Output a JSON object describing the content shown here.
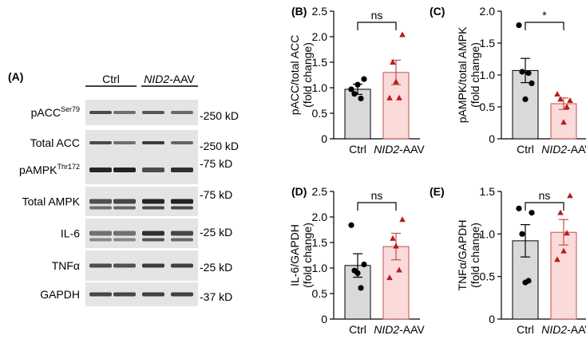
{
  "panel_a": {
    "label": "(A)",
    "group_labels": [
      {
        "text": "Ctrl",
        "italic": false
      },
      {
        "text": "NID2",
        "italic": true,
        "suffix": "-AAV"
      }
    ],
    "blots": [
      {
        "label": "pACC",
        "sup": "Ser79",
        "marker": "-250 kD"
      },
      {
        "label": "Total ACC",
        "sup": "",
        "marker": "-250 kD"
      },
      {
        "label": "pAMPK",
        "sup": "Thr172",
        "marker": "-75 kD"
      },
      {
        "label": "Total AMPK",
        "sup": "",
        "marker": "-75 kD"
      },
      {
        "label": "IL-6",
        "sup": "",
        "marker": "-25 kD"
      },
      {
        "label": "TNFα",
        "sup": "",
        "marker": "-25 kD"
      },
      {
        "label": "GAPDH",
        "sup": "",
        "marker": "-37 kD"
      }
    ]
  },
  "chart_data": [
    {
      "panel": "(B)",
      "type": "bar",
      "ylabel": "pACC/total ACC",
      "ylabel2": "(fold change)",
      "ylim": [
        0,
        2.5
      ],
      "yticks": [
        "0",
        "0.5",
        "1.0",
        "1.5",
        "2.0",
        "2.5"
      ],
      "categories": [
        {
          "text": "Ctrl",
          "italic": false
        },
        {
          "text": "NID2",
          "italic": true,
          "suffix": "-AAV"
        }
      ],
      "means": [
        0.97,
        1.3
      ],
      "sem": [
        0.1,
        0.24
      ],
      "points": [
        [
          0.97,
          1.17,
          0.88,
          0.79,
          1.06
        ],
        [
          0.8,
          2.04,
          1.5,
          0.8,
          1.12
        ]
      ],
      "significance": "ns",
      "colors": {
        "bar1": "#d9d9d9",
        "bar2": "#fbdada",
        "edge2": "#c0504d",
        "pt2": "#b71c1c"
      }
    },
    {
      "panel": "(C)",
      "type": "bar",
      "ylabel": "pAMPK/total AMPK",
      "ylabel2": "(fold change)",
      "ylim": [
        0,
        2.0
      ],
      "yticks": [
        "0",
        "0.5",
        "1.0",
        "1.5",
        "2.0"
      ],
      "categories": [
        {
          "text": "Ctrl",
          "italic": false
        },
        {
          "text": "NID2",
          "italic": true,
          "suffix": "-AAV"
        }
      ],
      "means": [
        1.07,
        0.55
      ],
      "sem": [
        0.19,
        0.09
      ],
      "points": [
        [
          1.78,
          0.87,
          1.05,
          1.03,
          0.62
        ],
        [
          0.7,
          0.6,
          0.62,
          0.5,
          0.26
        ]
      ],
      "significance": "*",
      "colors": {
        "bar1": "#d9d9d9",
        "bar2": "#fbdada",
        "edge2": "#c0504d",
        "pt2": "#b71c1c"
      }
    },
    {
      "panel": "(D)",
      "type": "bar",
      "ylabel": "IL-6/GAPDH",
      "ylabel2": "(fold change)",
      "ylim": [
        0,
        2.5
      ],
      "yticks": [
        "0",
        "0.5",
        "1.0",
        "1.5",
        "2.0",
        "2.5"
      ],
      "categories": [
        {
          "text": "Ctrl",
          "italic": false
        },
        {
          "text": "NID2",
          "italic": true,
          "suffix": "-AAV"
        }
      ],
      "means": [
        1.05,
        1.42
      ],
      "sem": [
        0.23,
        0.26
      ],
      "points": [
        [
          1.84,
          1.07,
          0.95,
          0.61,
          0.9
        ],
        [
          0.81,
          1.95,
          1.58,
          0.96,
          1.43
        ]
      ],
      "significance": "ns",
      "colors": {
        "bar1": "#d9d9d9",
        "bar2": "#fbdada",
        "edge2": "#c0504d",
        "pt2": "#b71c1c"
      }
    },
    {
      "panel": "(E)",
      "type": "bar",
      "ylabel": "TNFα/GAPDH",
      "ylabel2": "(fold change)",
      "ylim": [
        0,
        1.5
      ],
      "yticks": [
        "0",
        "0.5",
        "1.0",
        "1.5"
      ],
      "categories": [
        {
          "text": "Ctrl",
          "italic": false
        },
        {
          "text": "NID2",
          "italic": true,
          "suffix": "-AAV"
        }
      ],
      "means": [
        0.92,
        1.02
      ],
      "sem": [
        0.19,
        0.15
      ],
      "points": [
        [
          1.3,
          1.25,
          1.0,
          0.45,
          0.43
        ],
        [
          0.7,
          1.45,
          1.25,
          1.01,
          0.8
        ]
      ],
      "significance": "ns",
      "colors": {
        "bar1": "#d9d9d9",
        "bar2": "#fbdada",
        "edge2": "#c0504d",
        "pt2": "#b71c1c"
      }
    }
  ]
}
